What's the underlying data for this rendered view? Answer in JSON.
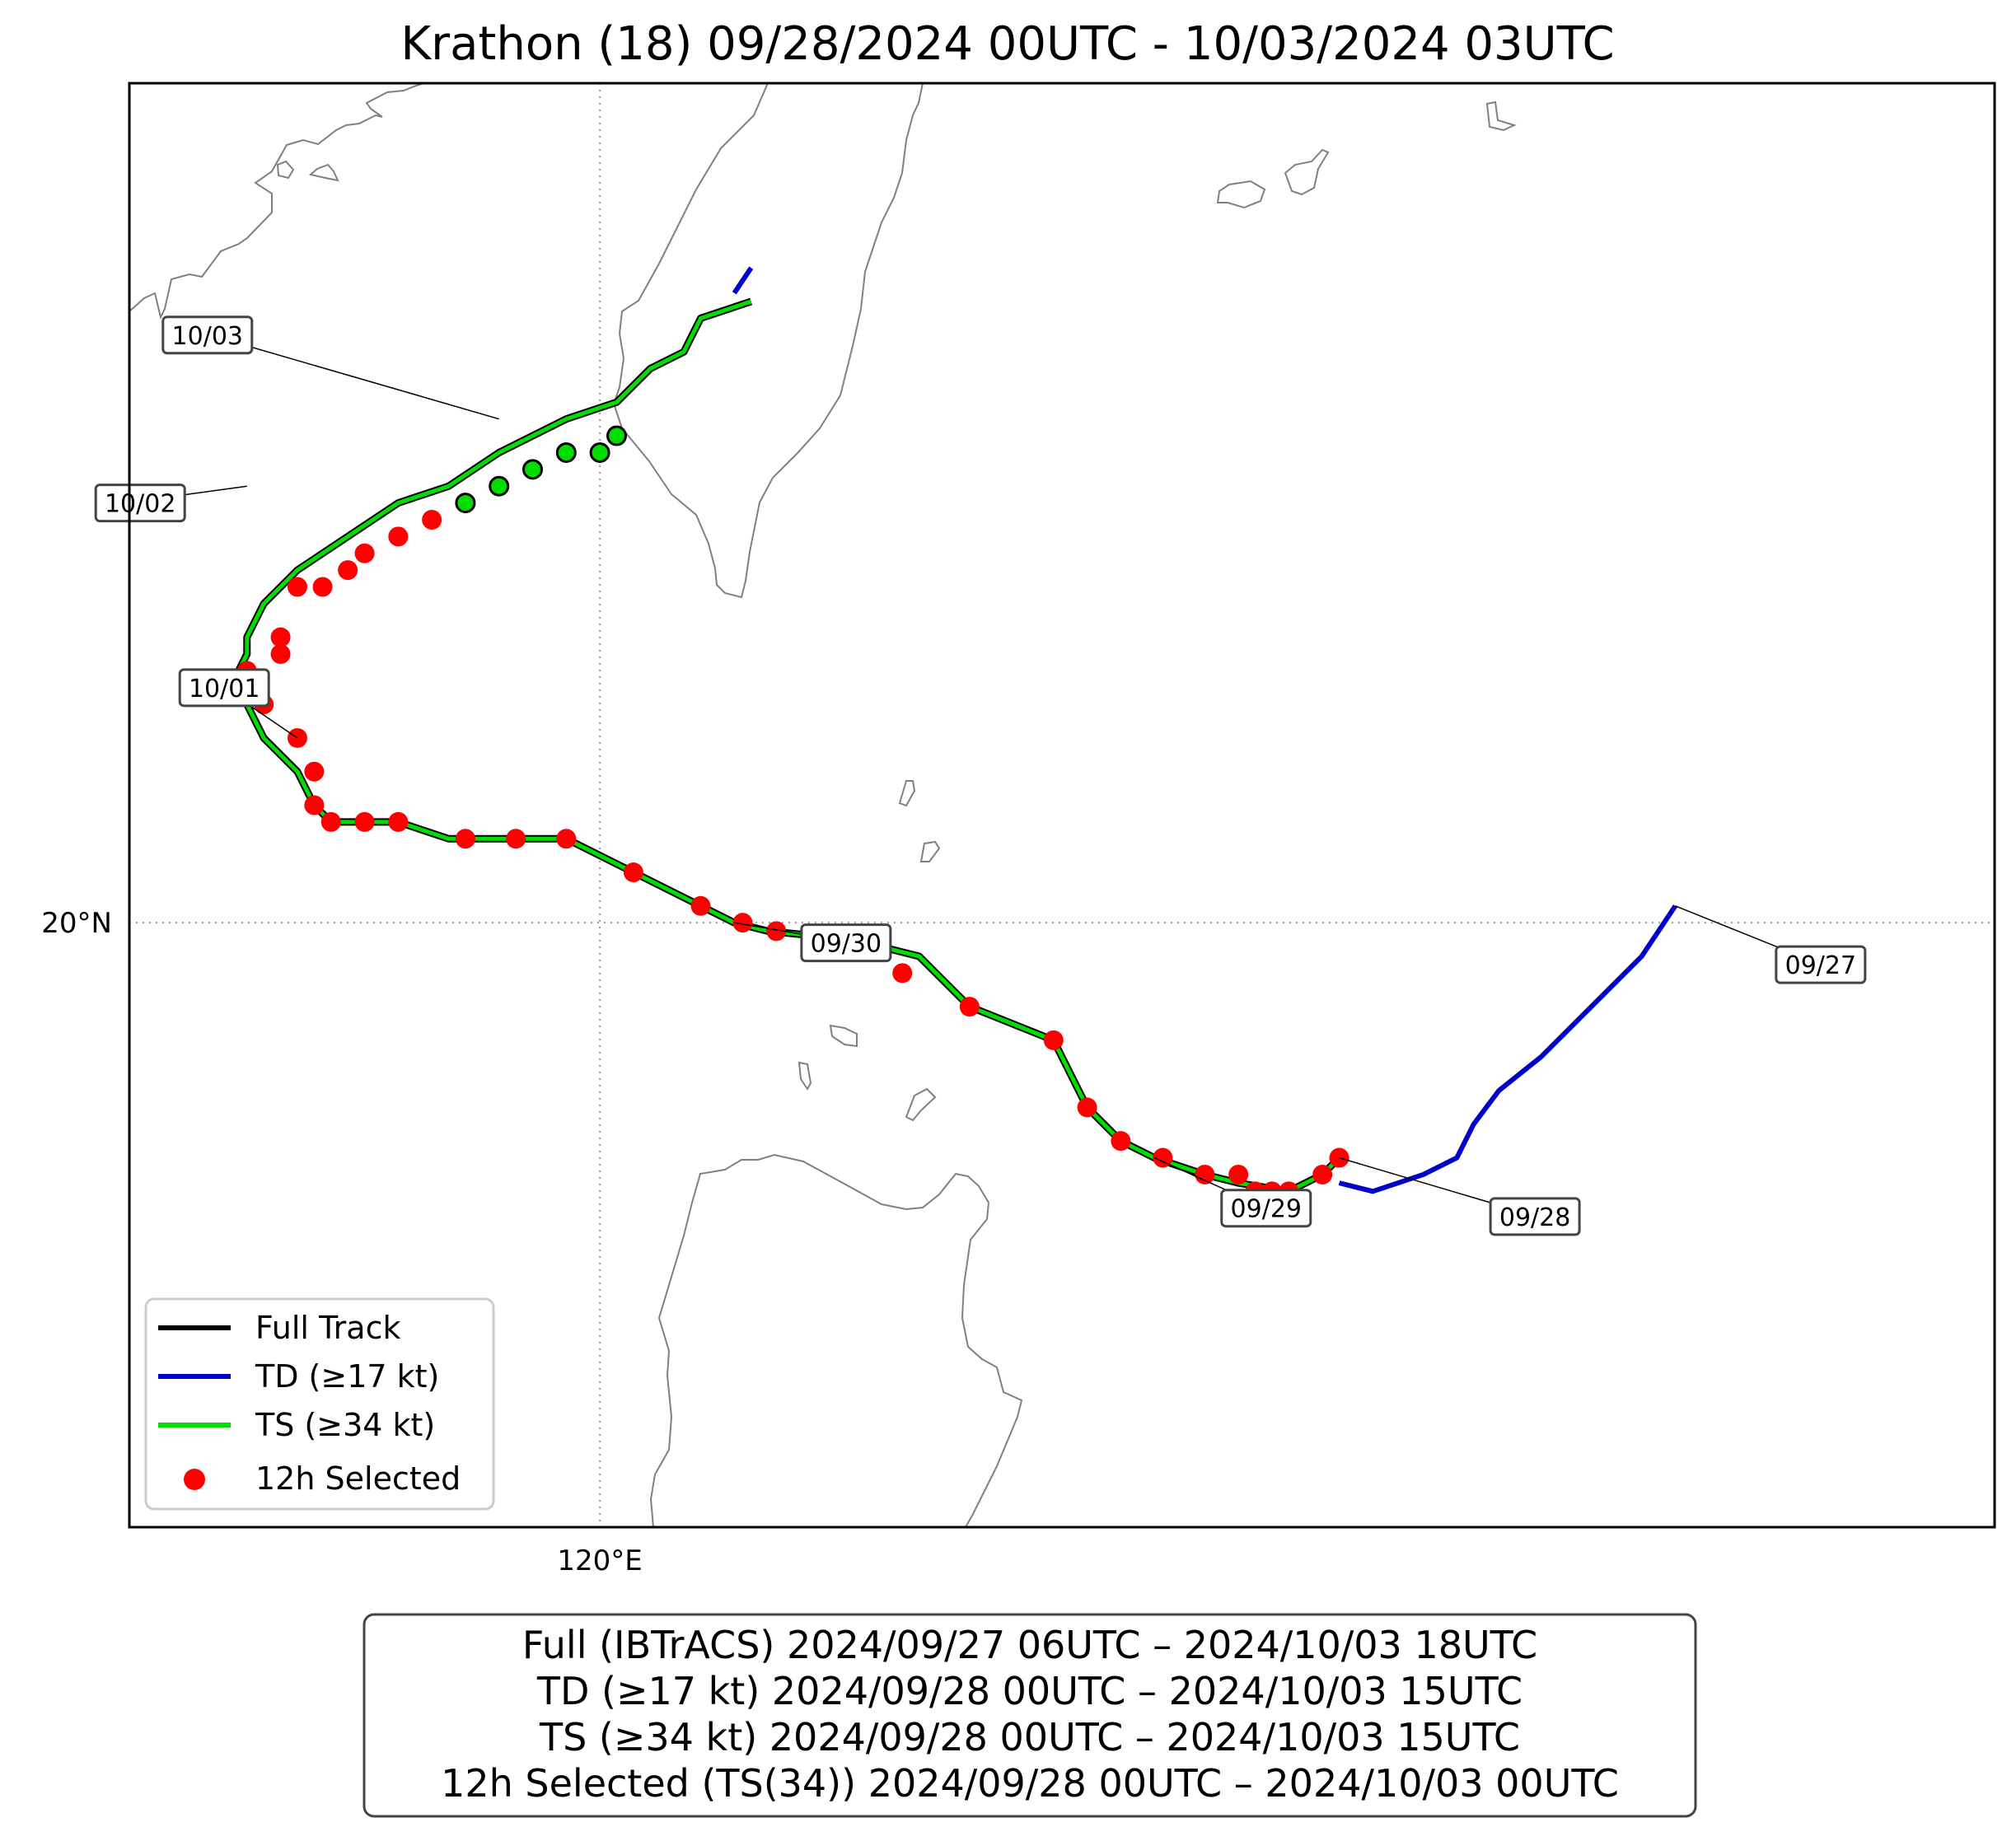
{
  "title": "Krathon (18)   09/28/2024 00UTC - 10/03/2024 03UTC",
  "axes": {
    "lon_label": "120°E",
    "lat_label": "20°N"
  },
  "colors": {
    "full_track": "#000000",
    "td": "#0000cc",
    "ts": "#00dd00",
    "selected": "#ff0000",
    "coast": "#808080",
    "grid": "#999999"
  },
  "chart_data": {
    "type": "scatter",
    "map": {
      "lon_range": [
        117.2,
        128.3
      ],
      "lat_range": [
        16.4,
        25.0
      ],
      "gridlines": {
        "lon": [
          120
        ],
        "lat": [
          20
        ]
      }
    },
    "td_track": [
      [
        126.4,
        20.1
      ],
      [
        126.2,
        19.8
      ],
      [
        126.0,
        19.6
      ],
      [
        125.8,
        19.4
      ],
      [
        125.6,
        19.2
      ],
      [
        125.35,
        19.0
      ],
      [
        125.2,
        18.8
      ],
      [
        125.1,
        18.6
      ],
      [
        124.9,
        18.5
      ],
      [
        124.6,
        18.4
      ],
      [
        124.4,
        18.45
      ]
    ],
    "ts_track": [
      [
        124.4,
        18.6
      ],
      [
        124.3,
        18.5
      ],
      [
        124.1,
        18.4
      ],
      [
        123.8,
        18.45
      ],
      [
        123.6,
        18.5
      ],
      [
        123.3,
        18.6
      ],
      [
        123.1,
        18.7
      ],
      [
        122.9,
        18.9
      ],
      [
        122.7,
        19.3
      ],
      [
        122.2,
        19.5
      ],
      [
        121.9,
        19.8
      ],
      [
        121.5,
        19.9
      ],
      [
        121.0,
        19.95
      ],
      [
        120.8,
        20.0
      ],
      [
        120.6,
        20.1
      ],
      [
        120.2,
        20.3
      ],
      [
        119.8,
        20.5
      ],
      [
        119.4,
        20.5
      ],
      [
        119.1,
        20.5
      ],
      [
        118.8,
        20.6
      ],
      [
        118.6,
        20.6
      ],
      [
        118.4,
        20.6
      ],
      [
        118.3,
        20.7
      ],
      [
        118.2,
        20.9
      ],
      [
        118.0,
        21.1
      ],
      [
        117.9,
        21.3
      ],
      [
        117.8,
        21.4
      ],
      [
        117.9,
        21.6
      ],
      [
        117.9,
        21.7
      ],
      [
        118.0,
        21.9
      ],
      [
        118.1,
        22.0
      ],
      [
        118.2,
        22.1
      ],
      [
        118.35,
        22.2
      ],
      [
        118.5,
        22.3
      ],
      [
        118.8,
        22.5
      ],
      [
        119.1,
        22.6
      ],
      [
        119.4,
        22.8
      ],
      [
        119.6,
        22.9
      ],
      [
        119.8,
        23.0
      ],
      [
        120.1,
        23.1
      ],
      [
        120.3,
        23.3
      ],
      [
        120.5,
        23.4
      ],
      [
        120.6,
        23.6
      ],
      [
        120.9,
        23.7
      ]
    ],
    "td_tail_end": [
      [
        120.8,
        23.75
      ],
      [
        120.9,
        23.9
      ]
    ],
    "selected_12h": [
      [
        124.4,
        18.6
      ],
      [
        124.3,
        18.5
      ],
      [
        124.1,
        18.4
      ],
      [
        124.0,
        18.4
      ],
      [
        123.9,
        18.4
      ],
      [
        123.8,
        18.5
      ],
      [
        123.6,
        18.5
      ],
      [
        123.35,
        18.6
      ],
      [
        123.1,
        18.7
      ],
      [
        122.9,
        18.9
      ],
      [
        122.7,
        19.3
      ],
      [
        122.2,
        19.5
      ],
      [
        121.8,
        19.7
      ],
      [
        121.4,
        19.9
      ],
      [
        121.05,
        19.95
      ],
      [
        120.85,
        20.0
      ],
      [
        120.6,
        20.1
      ],
      [
        120.2,
        20.3
      ],
      [
        119.8,
        20.5
      ],
      [
        119.5,
        20.5
      ],
      [
        119.2,
        20.5
      ],
      [
        118.8,
        20.6
      ],
      [
        118.6,
        20.6
      ],
      [
        118.4,
        20.6
      ],
      [
        118.3,
        20.7
      ],
      [
        118.3,
        20.9
      ],
      [
        118.2,
        21.1
      ],
      [
        118.0,
        21.3
      ],
      [
        117.9,
        21.4
      ],
      [
        117.9,
        21.5
      ],
      [
        118.1,
        21.6
      ],
      [
        118.1,
        21.7
      ],
      [
        118.2,
        22.0
      ],
      [
        118.35,
        22.0
      ],
      [
        118.5,
        22.1
      ],
      [
        118.6,
        22.2
      ],
      [
        118.8,
        22.3
      ],
      [
        119.0,
        22.4
      ]
    ],
    "ts_points": [
      [
        119.2,
        22.5
      ],
      [
        119.4,
        22.6
      ],
      [
        119.6,
        22.7
      ],
      [
        119.8,
        22.8
      ],
      [
        120.0,
        22.8
      ],
      [
        120.1,
        22.9
      ]
    ],
    "date_labels": [
      {
        "text": "09/27",
        "lon": 127.0,
        "lat": 19.75,
        "anchor": [
          126.4,
          20.1
        ]
      },
      {
        "text": "09/28",
        "lon": 125.3,
        "lat": 18.25,
        "anchor": [
          124.4,
          18.6
        ]
      },
      {
        "text": "09/29",
        "lon": 123.7,
        "lat": 18.3,
        "anchor": [
          123.3,
          18.6
        ]
      },
      {
        "text": "09/30",
        "lon": 121.2,
        "lat": 19.88,
        "anchor": [
          120.8,
          20.0
        ]
      },
      {
        "text": "10/01",
        "lon": 117.5,
        "lat": 21.4,
        "anchor": [
          118.2,
          21.1
        ]
      },
      {
        "text": "10/02",
        "lon": 117.0,
        "lat": 22.5,
        "anchor": [
          117.9,
          22.6
        ]
      },
      {
        "text": "10/03",
        "lon": 117.4,
        "lat": 23.5,
        "anchor": [
          119.4,
          23.0
        ]
      }
    ],
    "legend": {
      "placement": "lower-left",
      "entries": [
        {
          "label": "Full Track",
          "kind": "line",
          "color": "#000000"
        },
        {
          "label": "TD (≥17 kt)",
          "kind": "line",
          "color": "#0000cc"
        },
        {
          "label": "TS (≥34 kt)",
          "kind": "line",
          "color": "#00dd00"
        },
        {
          "label": "12h Selected",
          "kind": "dot",
          "color": "#ff0000"
        }
      ]
    }
  },
  "summary": {
    "lines": [
      "Full (IBTrACS)   2024/09/27 06UTC – 2024/10/03 18UTC",
      "TD (≥17 kt)   2024/09/28 00UTC – 2024/10/03 15UTC",
      "TS (≥34 kt)   2024/09/28 00UTC – 2024/10/03 15UTC",
      "12h Selected (TS(34))   2024/09/28 00UTC – 2024/10/03 00UTC"
    ]
  }
}
